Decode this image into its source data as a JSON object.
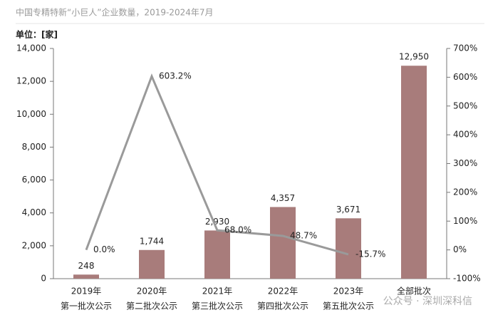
{
  "chart_data": {
    "type": "bar_line",
    "title": "中国专精特新“小巨人”企业数量，2019-2024年7月",
    "unit_label": "单位：[家]",
    "watermark": "公众号 · 深圳深科信",
    "categories": [
      [
        "2019年",
        "第一批次公示"
      ],
      [
        "2020年",
        "第二批次公示"
      ],
      [
        "2021年",
        "第三批次公示"
      ],
      [
        "2022年",
        "第四批次公示"
      ],
      [
        "2023年",
        "第五批次公示"
      ],
      [
        "全部批次"
      ]
    ],
    "series": [
      {
        "type": "bar",
        "color": "#a87c7b",
        "values": [
          248,
          1744,
          2930,
          4357,
          3671,
          12950
        ],
        "value_labels": [
          "248",
          "1,744",
          "2,930",
          "4,357",
          "3,671",
          "12,950"
        ]
      },
      {
        "type": "line",
        "axis": "y2",
        "color": "#9a9a9a",
        "values": [
          0.0,
          603.2,
          68.0,
          48.7,
          -15.7,
          null
        ],
        "value_labels": [
          "0.0%",
          "603.2%",
          "68.0%",
          "48.7%",
          "-15.7%",
          null
        ]
      }
    ],
    "ylim": [
      0,
      14000
    ],
    "yticks": [
      0,
      {
        "value": 2000,
        "label": "2,000"
      },
      {
        "value": 4000,
        "label": "4,000"
      },
      {
        "value": 6000,
        "label": "6,000"
      },
      {
        "value": 8000,
        "label": "8,000"
      },
      {
        "value": 10000,
        "label": "10,000"
      },
      {
        "value": 12000,
        "label": "12,000"
      },
      {
        "value": 14000,
        "label": "14,000"
      }
    ],
    "y2lim": [
      -100,
      700
    ],
    "y2ticks": [
      {
        "value": -100,
        "label": "-100%"
      },
      {
        "value": 0,
        "label": "0%"
      },
      {
        "value": 100,
        "label": "100%"
      },
      {
        "value": 200,
        "label": "200%"
      },
      {
        "value": 300,
        "label": "300%"
      },
      {
        "value": 400,
        "label": "400%"
      },
      {
        "value": 500,
        "label": "500%"
      },
      {
        "value": 600,
        "label": "600%"
      },
      {
        "value": 700,
        "label": "700%"
      }
    ]
  }
}
